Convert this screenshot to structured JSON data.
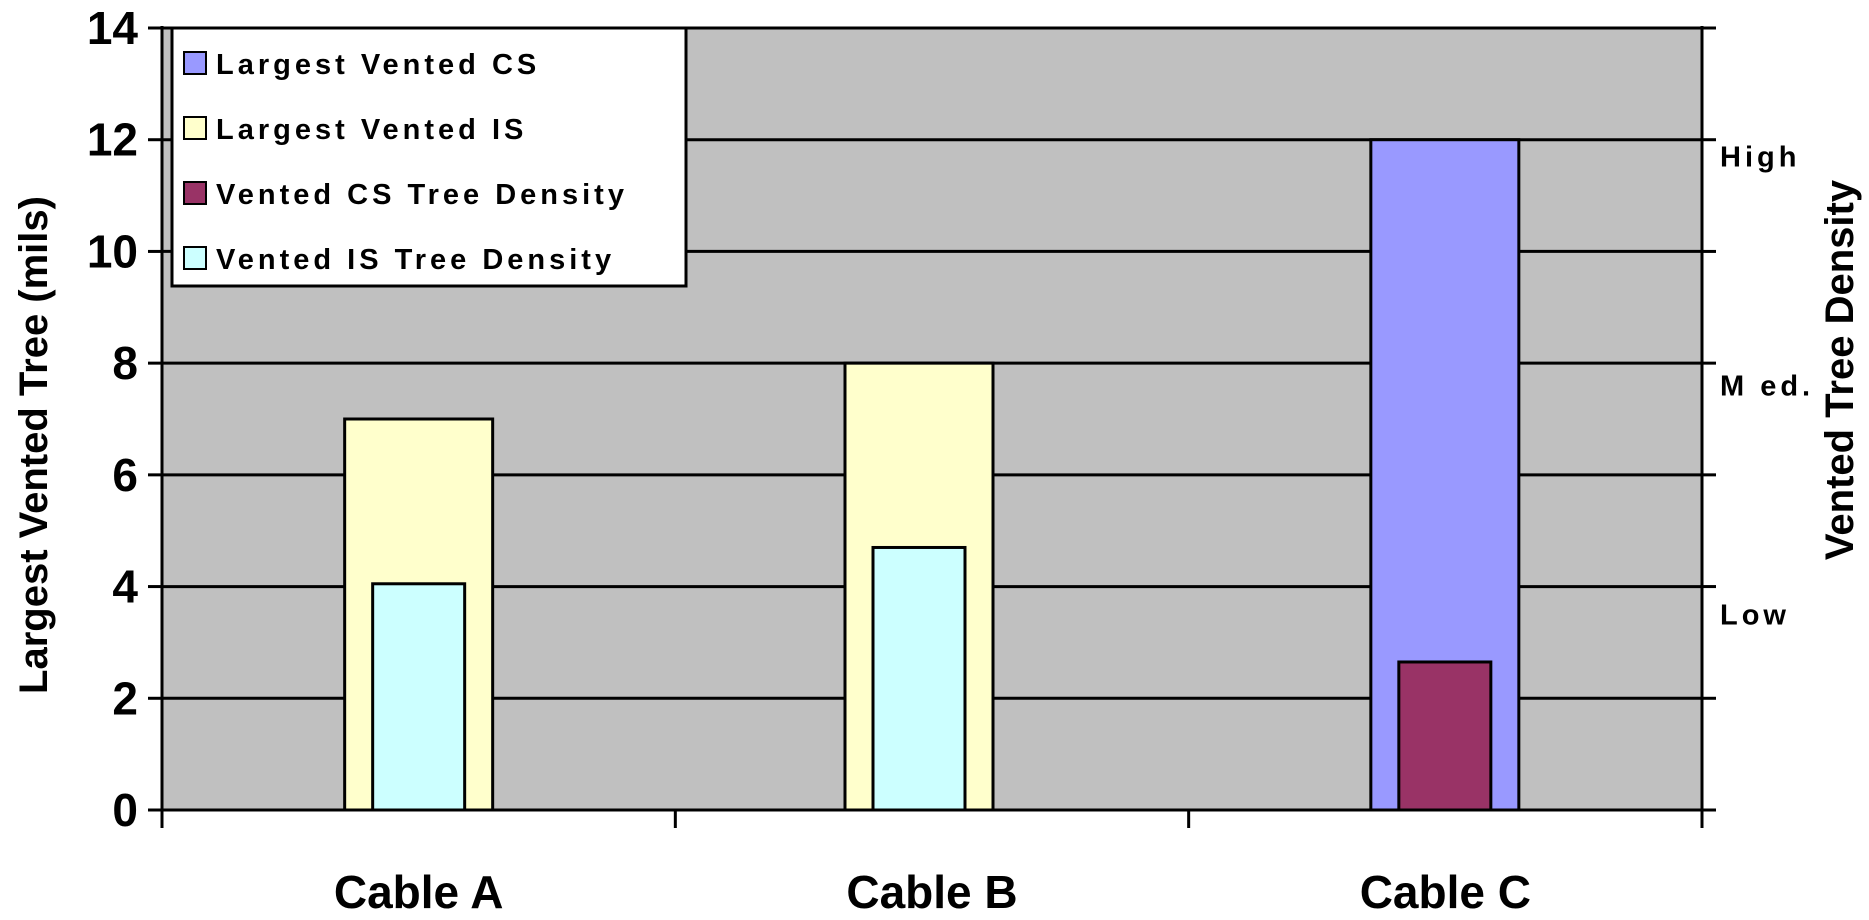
{
  "chart_data": {
    "type": "bar",
    "categories": [
      "Cable A",
      "Cable B",
      "Cable C"
    ],
    "series": [
      {
        "name": "Largest Vented CS",
        "values": [
          null,
          null,
          12
        ],
        "color": "#9999ff"
      },
      {
        "name": "Largest Vented IS",
        "values": [
          7,
          8,
          null
        ],
        "color": "#ffffcc"
      },
      {
        "name": "Vented CS Tree Density",
        "values": [
          null,
          null,
          2.65
        ],
        "color": "#993366"
      },
      {
        "name": "Vented IS Tree Density",
        "values": [
          4.05,
          4.7,
          null
        ],
        "color": "#ccffff"
      }
    ],
    "ylabel": "Largest Vented Tree (mils)",
    "ylim": [
      0,
      14
    ],
    "yticks": [
      "0",
      "2",
      "4",
      "6",
      "8",
      "10",
      "12",
      "14"
    ],
    "y2label": "Vented Tree Density",
    "y2ticks": [
      "High",
      "M ed.",
      "Low"
    ],
    "y2tick_values": [
      11.7,
      7.6,
      3.5
    ],
    "grid": true,
    "legend_position": "top-left",
    "plot_background": "#c0c0c0"
  }
}
